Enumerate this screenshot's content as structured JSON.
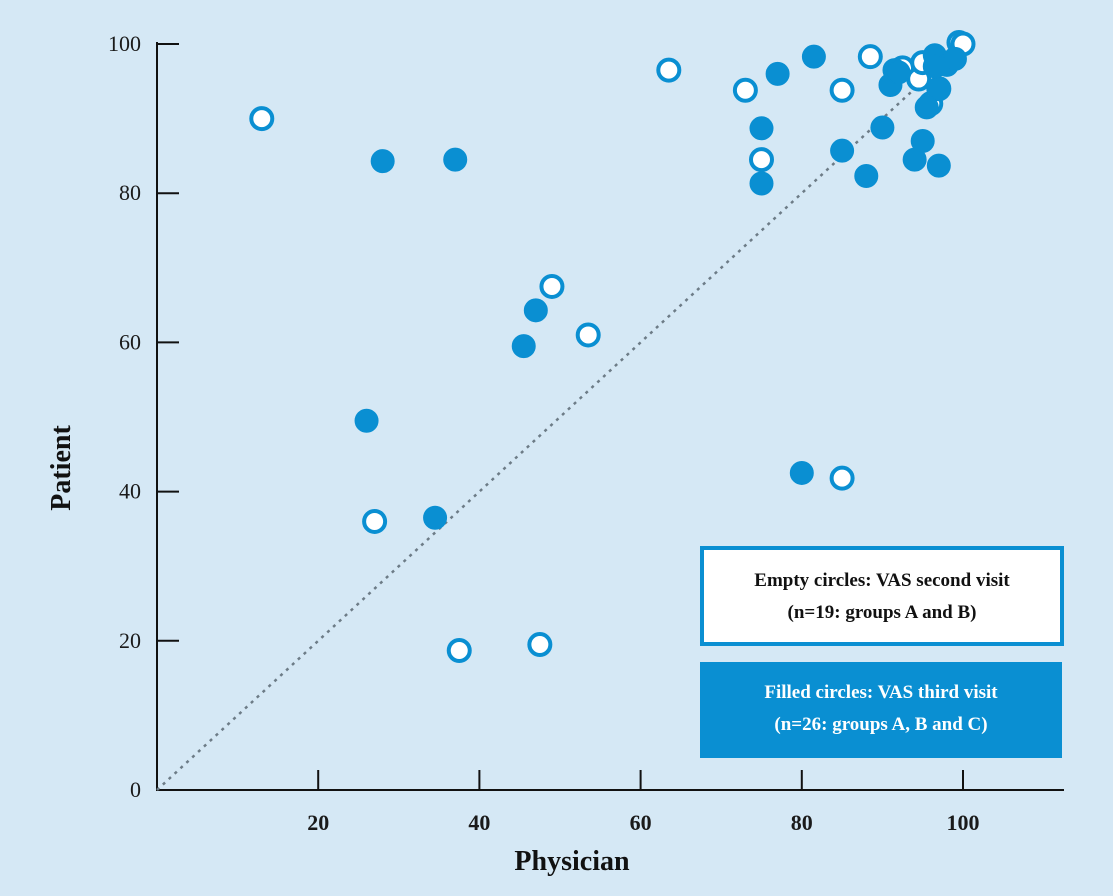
{
  "colors": {
    "background": "#d5e8f5",
    "marker": "#0a8fd2",
    "axis": "#111111",
    "diagonal": "#6d7c87",
    "legend_empty_text": "#111111",
    "legend_filled_text": "#ffffff"
  },
  "legend": {
    "empty": {
      "line1": "Empty circles: VAS second visit",
      "line2": "(n=19: groups A and B)"
    },
    "filled": {
      "line1": "Filled circles: VAS third visit",
      "line2": "(n=26: groups A, B and C)"
    }
  },
  "chart_data": {
    "type": "scatter",
    "title": "",
    "xlabel": "Physician",
    "ylabel": "Patient",
    "xlim": [
      0,
      112
    ],
    "ylim": [
      0,
      100
    ],
    "x_ticks": [
      "20",
      "40",
      "60",
      "80",
      "100"
    ],
    "y_ticks": [
      "0",
      "20",
      "40",
      "60",
      "80",
      "100"
    ],
    "reference_line": {
      "style": "dotted",
      "from": [
        0,
        0
      ],
      "to": [
        100,
        100
      ]
    },
    "grid": false,
    "legend_position": "bottom-right",
    "series": [
      {
        "name": "Empty circles: VAS second visit",
        "marker": "open",
        "points": [
          [
            13,
            90
          ],
          [
            27,
            36
          ],
          [
            37.5,
            18.7
          ],
          [
            47.5,
            19.5
          ],
          [
            49,
            67.5
          ],
          [
            53.5,
            61
          ],
          [
            63.5,
            96.5
          ],
          [
            73,
            93.8
          ],
          [
            75,
            84.5
          ],
          [
            85,
            93.8
          ],
          [
            85,
            41.8
          ],
          [
            88.5,
            98.3
          ],
          [
            92.5,
            96.8
          ],
          [
            94.5,
            95.3
          ],
          [
            95,
            97.5
          ],
          [
            96,
            92
          ],
          [
            99.5,
            100.2
          ],
          [
            97,
            94
          ],
          [
            100,
            100
          ]
        ]
      },
      {
        "name": "Filled circles: VAS third visit",
        "marker": "filled",
        "points": [
          [
            28,
            84.3
          ],
          [
            37,
            84.5
          ],
          [
            26,
            49.5
          ],
          [
            34.5,
            36.5
          ],
          [
            45.5,
            59.5
          ],
          [
            47,
            64.3
          ],
          [
            75,
            88.7
          ],
          [
            75,
            81.3
          ],
          [
            77,
            96
          ],
          [
            81.5,
            98.3
          ],
          [
            80,
            42.5
          ],
          [
            85,
            85.7
          ],
          [
            88,
            82.3
          ],
          [
            90,
            88.8
          ],
          [
            91,
            94.5
          ],
          [
            91.5,
            96.5
          ],
          [
            94,
            84.5
          ],
          [
            95,
            87
          ],
          [
            96.5,
            98.5
          ],
          [
            97,
            94
          ],
          [
            97,
            83.7
          ],
          [
            98,
            97.2
          ],
          [
            99,
            98
          ],
          [
            95.5,
            91.5
          ],
          [
            92,
            96.2
          ],
          [
            96.5,
            97
          ]
        ]
      }
    ]
  }
}
